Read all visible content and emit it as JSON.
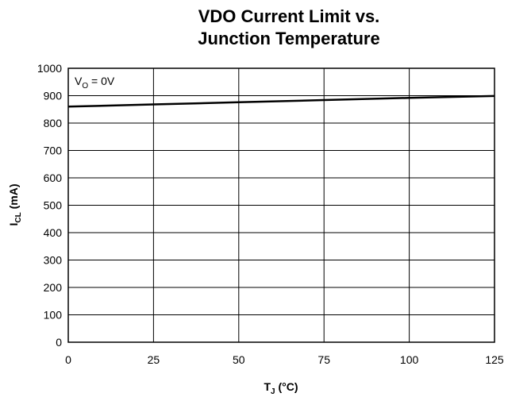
{
  "chart_data": {
    "type": "line",
    "title_lines": [
      "VDO Current Limit vs.",
      "Junction Temperature"
    ],
    "xlabel": {
      "main": "T",
      "sub": "J",
      "rest": " (°C)"
    },
    "ylabel": {
      "main": "I",
      "sub": "CL",
      "rest": " (mA)"
    },
    "xlim": [
      0,
      125
    ],
    "ylim": [
      0,
      1000
    ],
    "x_ticks": [
      0,
      25,
      50,
      75,
      100,
      125
    ],
    "y_ticks": [
      0,
      100,
      200,
      300,
      400,
      500,
      600,
      700,
      800,
      900,
      1000
    ],
    "x_tick_labels": [
      "0",
      "25",
      "50",
      "75",
      "100",
      "125"
    ],
    "y_tick_labels": [
      "0",
      "100",
      "200",
      "300",
      "400",
      "500",
      "600",
      "700",
      "800",
      "900",
      "1000"
    ],
    "grid": true,
    "annotation": {
      "main": "V",
      "sub": "O",
      "rest": " = 0V"
    },
    "series": [
      {
        "x": [
          0,
          25,
          50,
          75,
          100,
          125
        ],
        "y": [
          860,
          868,
          876,
          884,
          892,
          899
        ]
      }
    ]
  }
}
